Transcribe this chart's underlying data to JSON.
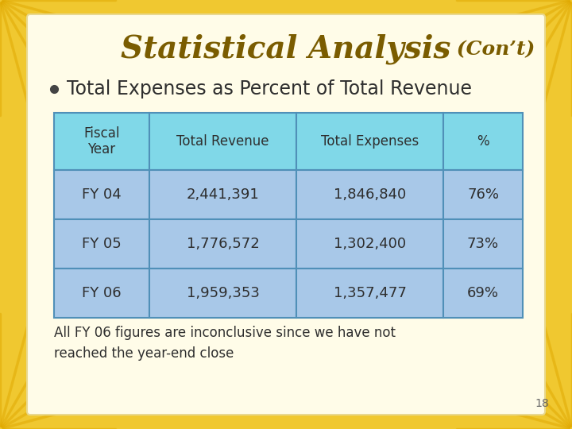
{
  "title_main": "Statistical Analysis",
  "title_cont": " (Con’t)",
  "bullet_text": "Total Expenses as Percent of Total Revenue",
  "table_headers": [
    "Fiscal\nYear",
    "Total Revenue",
    "Total Expenses",
    "%"
  ],
  "table_rows": [
    [
      "FY 04",
      "2,441,391",
      "1,846,840",
      "76%"
    ],
    [
      "FY 05",
      "1,776,572",
      "1,302,400",
      "73%"
    ],
    [
      "FY 06",
      "1,959,353",
      "1,357,477",
      "69%"
    ]
  ],
  "footer_text": "All FY 06 figures are inconclusive since we have not\nreached the year-end close",
  "page_number": "18",
  "bg_color": "#F0C830",
  "slide_bg": "#FFFCE8",
  "header_cell_color": "#80D8E8",
  "data_cell_color": "#A8C8E8",
  "table_border_color": "#5090B8",
  "title_color": "#7A5C00",
  "bullet_color": "#2E2E2E",
  "footer_color": "#2E2E2E",
  "page_color": "#666666"
}
